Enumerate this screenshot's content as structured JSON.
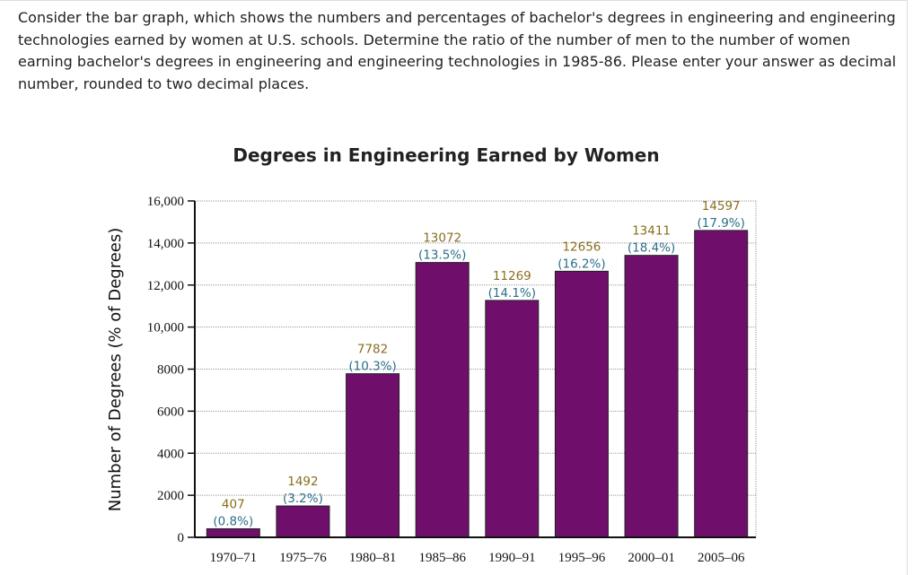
{
  "question": "Consider the bar graph, which shows the numbers and percentages of bachelor's degrees in engineering and engineering technologies earned by women at U.S. schools. Determine the ratio of the number of men to the number of women earning bachelor's degrees in engineering and engineering technologies in 1985-86. Please enter your answer as decimal number, rounded to two decimal places.",
  "chart_data": {
    "type": "bar",
    "title": "Degrees in Engineering Earned by Women",
    "xlabel": "",
    "ylabel": "Number of Degrees (% of Degrees)",
    "categories": [
      "1970–71",
      "1975–76",
      "1980–81",
      "1985–86",
      "1990–91",
      "1995–96",
      "2000–01",
      "2005–06"
    ],
    "values": [
      407,
      1492,
      7782,
      13072,
      11269,
      12656,
      13411,
      14597
    ],
    "percent_labels": [
      "(0.8%)",
      "(3.2%)",
      "(10.3%)",
      "(13.5%)",
      "(14.1%)",
      "(16.2%)",
      "(18.4%)",
      "(17.9%)"
    ],
    "ylim": [
      0,
      16000
    ],
    "yticks": [
      0,
      2000,
      4000,
      6000,
      8000,
      10000,
      12000,
      14000,
      16000
    ],
    "ytick_labels": [
      "0",
      "2000",
      "4000",
      "6000",
      "8000",
      "10,000",
      "12,000",
      "14,000",
      "16,000"
    ],
    "grid": true,
    "bar_color": "#6f0f6b",
    "label_colors": {
      "number": "#8a6d1e",
      "percent": "#2a6f8a"
    }
  }
}
